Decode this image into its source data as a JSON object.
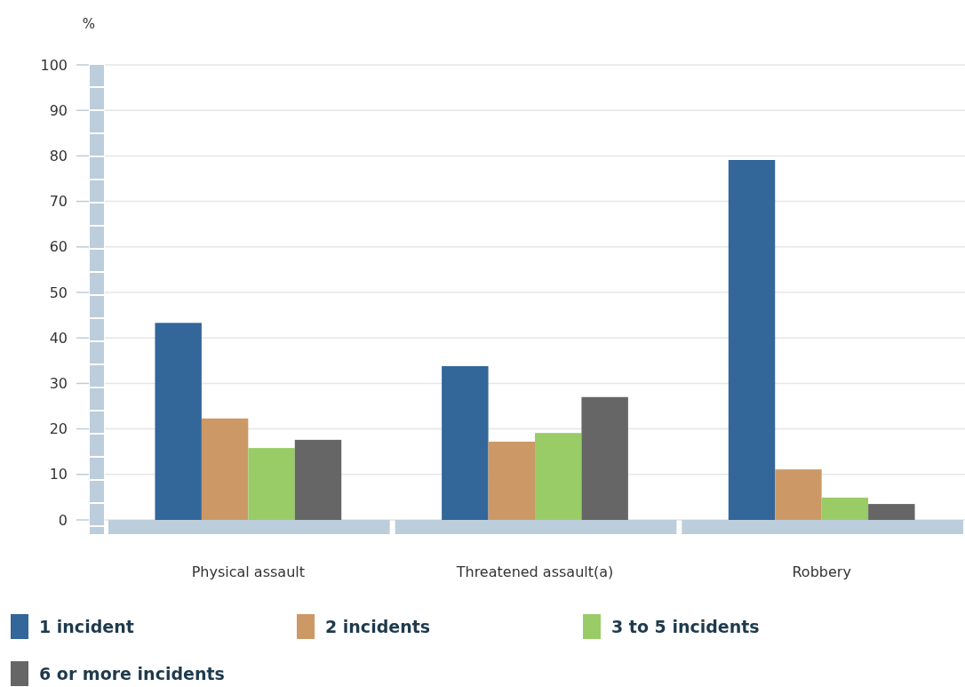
{
  "chart_data": {
    "type": "bar",
    "ylabel": "%",
    "categories": [
      "Physical assault",
      "Threatened assault(a)",
      "Robbery"
    ],
    "series": [
      {
        "name": "1 incident",
        "color": "#336699",
        "values": [
          43.3,
          33.8,
          79.1
        ]
      },
      {
        "name": "2 incidents",
        "color": "#cc9966",
        "values": [
          22.3,
          17.2,
          11.1
        ]
      },
      {
        "name": "3 to 5 incidents",
        "color": "#99cc66",
        "values": [
          15.8,
          19.1,
          4.9
        ]
      },
      {
        "name": "6 or more incidents",
        "color": "#666666",
        "values": [
          17.6,
          27.0,
          3.5
        ]
      }
    ],
    "ylim": [
      0,
      100
    ],
    "yticks": [
      0,
      10,
      20,
      30,
      40,
      50,
      60,
      70,
      80,
      90,
      100
    ],
    "grid": "y",
    "legend": "bottom"
  }
}
